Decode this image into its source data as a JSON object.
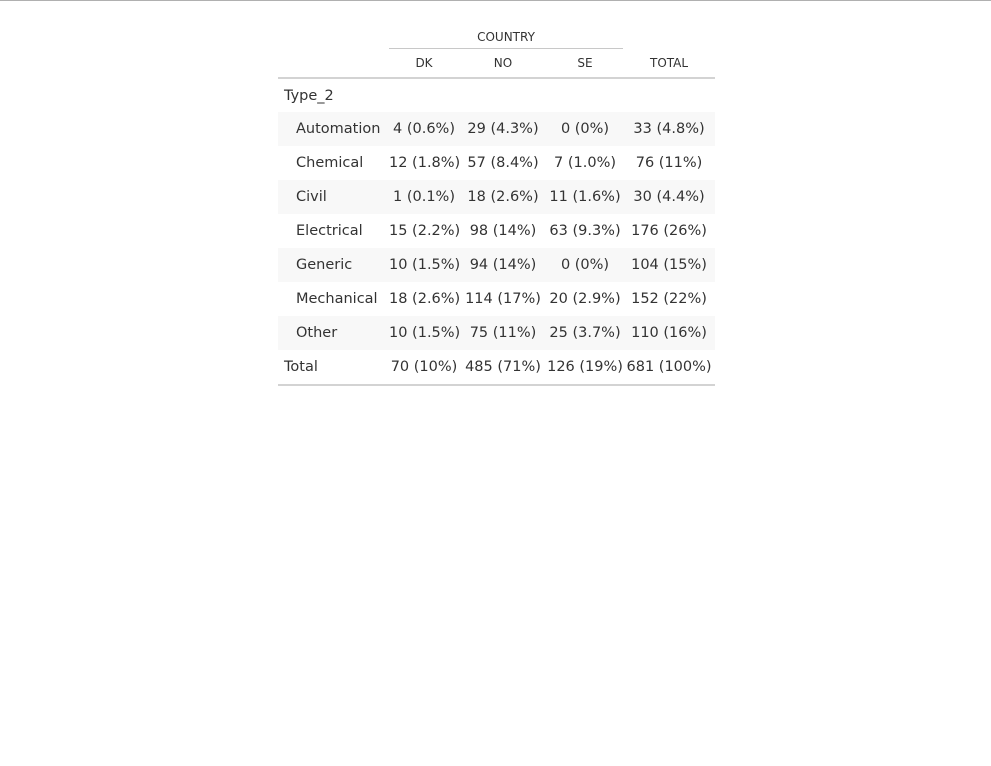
{
  "table": {
    "spanner_label": "COUNTRY",
    "columns": [
      "DK",
      "NO",
      "SE",
      "TOTAL"
    ],
    "group_label": "Type_2",
    "rows": [
      {
        "label": "Automation",
        "values": [
          "4 (0.6%)",
          "29 (4.3%)",
          "0 (0%)",
          "33 (4.8%)"
        ]
      },
      {
        "label": "Chemical",
        "values": [
          "12 (1.8%)",
          "57 (8.4%)",
          "7 (1.0%)",
          "76 (11%)"
        ]
      },
      {
        "label": "Civil",
        "values": [
          "1 (0.1%)",
          "18 (2.6%)",
          "11 (1.6%)",
          "30 (4.4%)"
        ]
      },
      {
        "label": "Electrical",
        "values": [
          "15 (2.2%)",
          "98 (14%)",
          "63 (9.3%)",
          "176 (26%)"
        ]
      },
      {
        "label": "Generic",
        "values": [
          "10 (1.5%)",
          "94 (14%)",
          "0 (0%)",
          "104 (15%)"
        ]
      },
      {
        "label": "Mechanical",
        "values": [
          "18 (2.6%)",
          "114 (17%)",
          "20 (2.9%)",
          "152 (22%)"
        ]
      },
      {
        "label": "Other",
        "values": [
          "10 (1.5%)",
          "75 (11%)",
          "25 (3.7%)",
          "110 (16%)"
        ]
      }
    ],
    "total": {
      "label": "Total",
      "values": [
        "70 (10%)",
        "485 (71%)",
        "126 (19%)",
        "681 (100%)"
      ]
    }
  }
}
